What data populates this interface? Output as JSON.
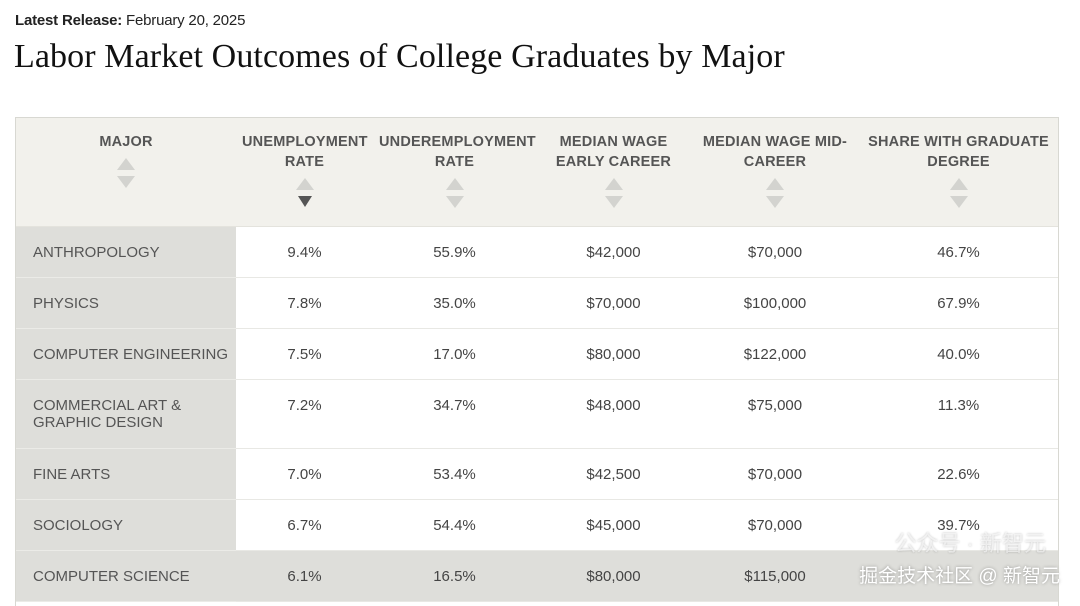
{
  "release": {
    "label": "Latest Release:",
    "date": "February 20, 2025"
  },
  "title": "Labor Market Outcomes of College Graduates by Major",
  "table": {
    "headers": [
      "MAJOR",
      "UNEMPLOYMENT RATE",
      "UNDEREMPLOYMENT RATE",
      "MEDIAN WAGE EARLY CAREER",
      "MEDIAN WAGE MID-CAREER",
      "SHARE WITH GRADUATE DEGREE"
    ],
    "active_sort": {
      "column": "UNEMPLOYMENT RATE",
      "direction": "descending"
    },
    "rows": [
      {
        "major": "ANTHROPOLOGY",
        "unemployment": "9.4%",
        "underemployment": "55.9%",
        "wage_early": "$42,000",
        "wage_mid": "$70,000",
        "grad_share": "46.7%"
      },
      {
        "major": "PHYSICS",
        "unemployment": "7.8%",
        "underemployment": "35.0%",
        "wage_early": "$70,000",
        "wage_mid": "$100,000",
        "grad_share": "67.9%"
      },
      {
        "major": "COMPUTER ENGINEERING",
        "unemployment": "7.5%",
        "underemployment": "17.0%",
        "wage_early": "$80,000",
        "wage_mid": "$122,000",
        "grad_share": "40.0%"
      },
      {
        "major": "COMMERCIAL ART & GRAPHIC DESIGN",
        "unemployment": "7.2%",
        "underemployment": "34.7%",
        "wage_early": "$48,000",
        "wage_mid": "$75,000",
        "grad_share": "11.3%"
      },
      {
        "major": "FINE ARTS",
        "unemployment": "7.0%",
        "underemployment": "53.4%",
        "wage_early": "$42,500",
        "wage_mid": "$70,000",
        "grad_share": "22.6%"
      },
      {
        "major": "SOCIOLOGY",
        "unemployment": "6.7%",
        "underemployment": "54.4%",
        "wage_early": "$45,000",
        "wage_mid": "$70,000",
        "grad_share": "39.7%"
      },
      {
        "major": "COMPUTER SCIENCE",
        "unemployment": "6.1%",
        "underemployment": "16.5%",
        "wage_early": "$80,000",
        "wage_mid": "$115,000",
        "grad_share": ""
      }
    ]
  },
  "watermark": {
    "text": "掘金技术社区 @ 新智元",
    "ghost_text": "公众号 · 新智元"
  },
  "colors": {
    "header_bg": "#f2f1ec",
    "major_cell_bg": "#dededa",
    "sort_inactive": "#d3d3cf",
    "sort_active": "#555555"
  }
}
